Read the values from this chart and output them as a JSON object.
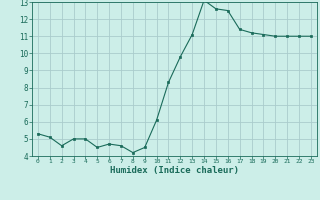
{
  "x": [
    0,
    1,
    2,
    3,
    4,
    5,
    6,
    7,
    8,
    9,
    10,
    11,
    12,
    13,
    14,
    15,
    16,
    17,
    18,
    19,
    20,
    21,
    22,
    23
  ],
  "y": [
    5.3,
    5.1,
    4.6,
    5.0,
    5.0,
    4.5,
    4.7,
    4.6,
    4.2,
    4.5,
    6.1,
    8.3,
    9.8,
    11.1,
    13.1,
    12.6,
    12.5,
    11.4,
    11.2,
    11.1,
    11.0,
    11.0,
    11.0,
    11.0
  ],
  "xlabel": "Humidex (Indice chaleur)",
  "ylim": [
    4,
    13
  ],
  "xlim": [
    -0.5,
    23.5
  ],
  "yticks": [
    4,
    5,
    6,
    7,
    8,
    9,
    10,
    11,
    12,
    13
  ],
  "xticks": [
    0,
    1,
    2,
    3,
    4,
    5,
    6,
    7,
    8,
    9,
    10,
    11,
    12,
    13,
    14,
    15,
    16,
    17,
    18,
    19,
    20,
    21,
    22,
    23
  ],
  "line_color": "#1a6b5a",
  "marker_color": "#1a6b5a",
  "bg_color": "#cceee8",
  "grid_color": "#aacccc",
  "axis_color": "#1a6b5a",
  "tick_label_color": "#1a6b5a",
  "xlabel_color": "#1a6b5a"
}
